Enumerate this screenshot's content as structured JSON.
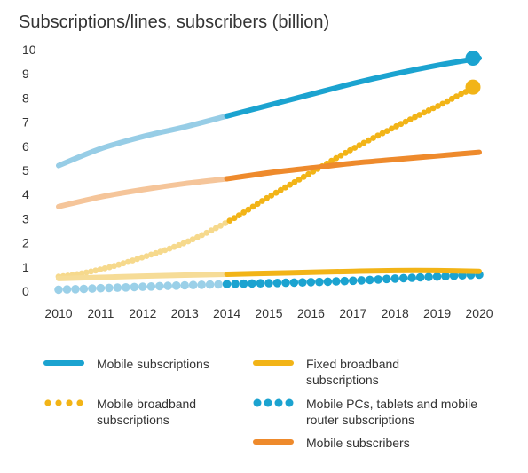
{
  "chart_data": {
    "type": "line",
    "title": "Subscriptions/lines, subscribers (billion)",
    "xlabel": "",
    "ylabel": "",
    "x": [
      "2010",
      "2011",
      "2012",
      "2013",
      "2014",
      "2015",
      "2016",
      "2017",
      "2018",
      "2019",
      "2020"
    ],
    "ylim": [
      0,
      10
    ],
    "yticks": [
      "0",
      "1",
      "2",
      "3",
      "4",
      "5",
      "6",
      "7",
      "8",
      "9",
      "10"
    ],
    "grid": false,
    "historical_until": "2014",
    "series": [
      {
        "name": "Mobile subscriptions",
        "style": "solid",
        "color": "#1ba3d0",
        "color_historical": "#97cde6",
        "end_marker": true,
        "values": [
          5.2,
          5.9,
          6.4,
          6.8,
          7.25,
          7.7,
          8.15,
          8.6,
          9.0,
          9.35,
          9.65
        ]
      },
      {
        "name": "Mobile broadband subscriptions",
        "style": "dotted",
        "color": "#f2b417",
        "color_historical": "#f6d98c",
        "end_marker": true,
        "values": [
          0.6,
          0.9,
          1.4,
          2.0,
          2.85,
          3.9,
          4.9,
          5.9,
          6.8,
          7.65,
          8.45
        ]
      },
      {
        "name": "Mobile subscribers",
        "style": "solid",
        "color": "#ee8a2c",
        "color_historical": "#f5c59a",
        "end_marker": false,
        "values": [
          3.5,
          3.9,
          4.2,
          4.45,
          4.65,
          4.9,
          5.1,
          5.3,
          5.45,
          5.6,
          5.75
        ]
      },
      {
        "name": "Fixed broadband subscriptions",
        "style": "solid",
        "color": "#f2b417",
        "color_historical": "#f6dc97",
        "end_marker": false,
        "values": [
          0.52,
          0.57,
          0.62,
          0.66,
          0.7,
          0.74,
          0.78,
          0.82,
          0.85,
          0.85,
          0.82
        ]
      },
      {
        "name": "Mobile PCs, tablets and mobile router subscriptions",
        "style": "dotted",
        "color": "#1ba3d0",
        "color_historical": "#9bd0e8",
        "end_marker": false,
        "values": [
          0.06,
          0.12,
          0.18,
          0.24,
          0.29,
          0.33,
          0.37,
          0.43,
          0.52,
          0.6,
          0.68
        ]
      }
    ]
  },
  "legend": [
    {
      "label": "Mobile subscriptions",
      "style": "solid",
      "color": "#1ba3d0"
    },
    {
      "label": "Fixed broadband subscriptions",
      "style": "solid",
      "color": "#f2b417"
    },
    {
      "label": "Mobile broadband subscriptions",
      "style": "dotted",
      "color": "#f2b417"
    },
    {
      "label": "Mobile PCs, tablets and mobile router subscriptions",
      "style": "dotted",
      "color": "#1ba3d0"
    },
    {
      "label": "Mobile subscribers",
      "style": "solid",
      "color": "#ee8a2c"
    }
  ]
}
